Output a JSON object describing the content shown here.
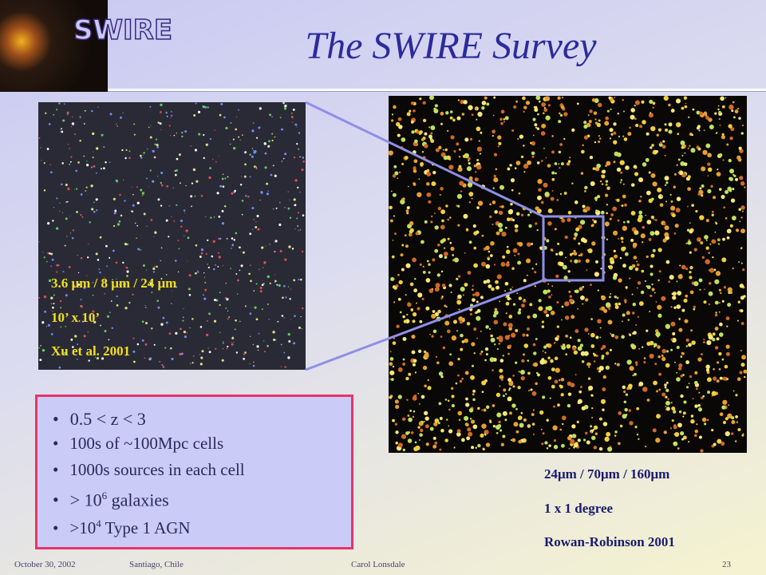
{
  "header": {
    "logo": "SWIRE",
    "title": "The SWIRE Survey"
  },
  "left_image": {
    "captions": [
      "3.6 μm  / 8 μm / 24 μm",
      "10’ x 10’",
      "Xu et al. 2001"
    ]
  },
  "right_image": {
    "captions": [
      "24μm  /  70μm  / 160μm",
      "1 x 1 degree",
      "Rowan-Robinson 2001"
    ]
  },
  "bullets": [
    {
      "text": "0.5 < z < 3"
    },
    {
      "text": "100s of ~100Mpc cells"
    },
    {
      "text": "1000s sources in each cell"
    },
    {
      "text": "> 10",
      "sup": "6",
      "after": " galaxies"
    },
    {
      "text": ">10",
      "sup": "4",
      "after": " Type 1 AGN"
    }
  ],
  "footer": {
    "date": "October 30, 2002",
    "place": "Santiago, Chile",
    "author": "Carol Lonsdale",
    "page": "23"
  }
}
